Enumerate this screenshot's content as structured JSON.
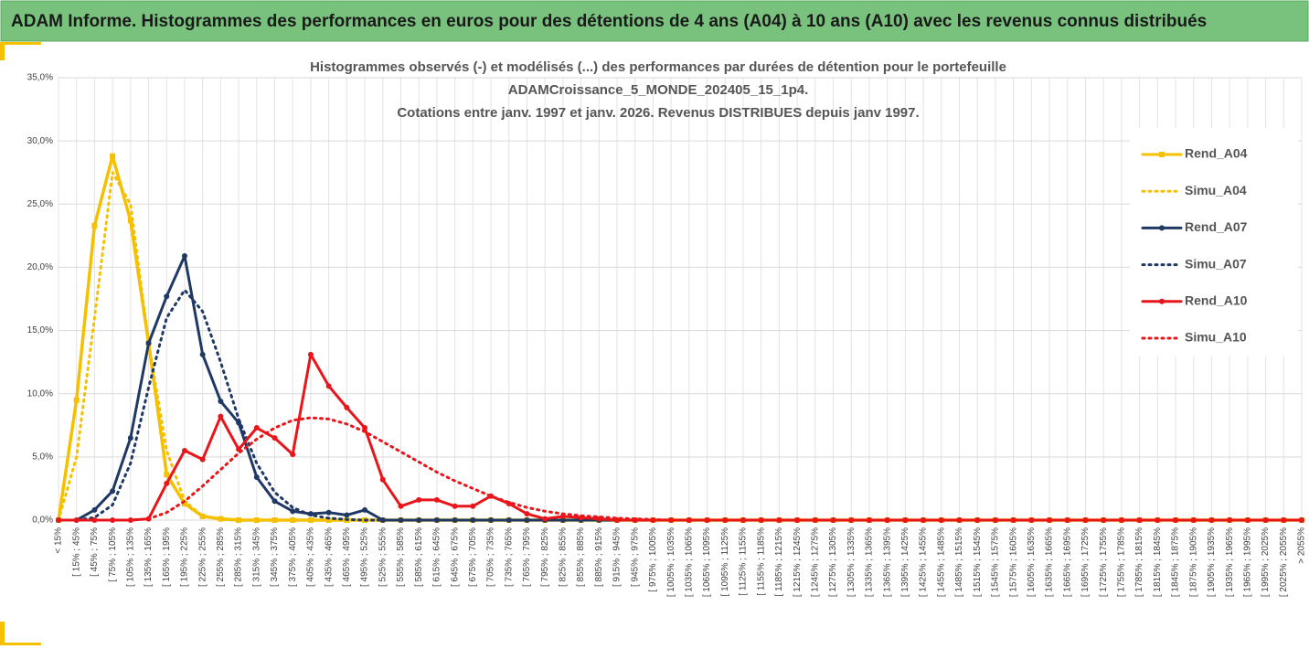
{
  "header": "ADAM Informe. Histogrammes des performances en euros pour des détentions de 4 ans (A04) à 10 ans (A10) avec les revenus connus distribués",
  "chart_data": {
    "type": "line",
    "title": [
      "Histogrammes observés (-) et modélisés (...) des performances par durées de détention pour le portefeuille",
      "ADAMCroissance_5_MONDE_202405_15_1p4.",
      "Cotations entre janv. 1997 et janv. 2026. Revenus DISTRIBUES depuis janv 1997."
    ],
    "categories": [
      "< 15%",
      "[ 15% ; 45%",
      "[ 45% ; 75%",
      "[ 75% ; 105%",
      "[ 105% ; 135%",
      "[ 135% ; 165%",
      "[ 165% ; 195%",
      "[ 195% ; 225%",
      "[ 225% ; 255%",
      "[ 255% ; 285%",
      "[ 285% ; 315%",
      "[ 315% ; 345%",
      "[ 345% ; 375%",
      "[ 375% ; 405%",
      "[ 405% ; 435%",
      "[ 435% ; 465%",
      "[ 465% ; 495%",
      "[ 495% ; 525%",
      "[ 525% ; 555%",
      "[ 555% ; 585%",
      "[ 585% ; 615%",
      "[ 615% ; 645%",
      "[ 645% ; 675%",
      "[ 675% ; 705%",
      "[ 705% ; 735%",
      "[ 735% ; 765%",
      "[ 765% ; 795%",
      "[ 795% ; 825%",
      "[ 825% ; 855%",
      "[ 855% ; 885%",
      "[ 885% ; 915%",
      "[ 915% ; 945%",
      "[ 945% ; 975%",
      "[ 975% ; 1005%",
      "[ 1005% ; 1035%",
      "[ 1035% ; 1065%",
      "[ 1065% ; 1095%",
      "[ 1095% ; 1125%",
      "[ 1125% ; 1155%",
      "[ 1155% ; 1185%",
      "[ 1185% ; 1215%",
      "[ 1215% ; 1245%",
      "[ 1245% ; 1275%",
      "[ 1275% ; 1305%",
      "[ 1305% ; 1335%",
      "[ 1335% ; 1365%",
      "[ 1365% ; 1395%",
      "[ 1395% ; 1425%",
      "[ 1425% ; 1455%",
      "[ 1455% ; 1485%",
      "[ 1485% ; 1515%",
      "[ 1515% ; 1545%",
      "[ 1545% ; 1575%",
      "[ 1575% ; 1605%",
      "[ 1605% ; 1635%",
      "[ 1635% ; 1665%",
      "[ 1665% ; 1695%",
      "[ 1695% ; 1725%",
      "[ 1725% ; 1755%",
      "[ 1755% ; 1785%",
      "[ 1785% ; 1815%",
      "[ 1815% ; 1845%",
      "[ 1845% ; 1875%",
      "[ 1875% ; 1905%",
      "[ 1905% ; 1935%",
      "[ 1935% ; 1965%",
      "[ 1965% ; 1995%",
      "[ 1995% ; 2025%",
      "[ 2025% ; 2055%",
      "> 2055%"
    ],
    "series": [
      {
        "name": "Rend_A04",
        "color": "#f5c000",
        "style": "solid",
        "marker": "square",
        "values": [
          0,
          9.5,
          23.3,
          28.8,
          23.7,
          14,
          3.6,
          1.3,
          0.3,
          0.1,
          0,
          0,
          0,
          0,
          0,
          0,
          0,
          0,
          0,
          0,
          0,
          0,
          0,
          0,
          0,
          0,
          0,
          0,
          0,
          0,
          0,
          0,
          0,
          0,
          0,
          0,
          0,
          0,
          0,
          0,
          0,
          0,
          0,
          0,
          0,
          0,
          0,
          0,
          0,
          0,
          0,
          0,
          0,
          0,
          0,
          0,
          0,
          0,
          0,
          0,
          0,
          0,
          0,
          0,
          0,
          0,
          0,
          0,
          0,
          0
        ]
      },
      {
        "name": "Simu_A04",
        "color": "#f5c000",
        "style": "dotted",
        "values": [
          0,
          5,
          16,
          27.5,
          25,
          14,
          5.5,
          1.5,
          0.3,
          0.05,
          0,
          0,
          0,
          0,
          0,
          0,
          0,
          0,
          0,
          0,
          0,
          0,
          0,
          0,
          0,
          0,
          0,
          0,
          0,
          0,
          0,
          0,
          0,
          0,
          0,
          0,
          0,
          0,
          0,
          0,
          0,
          0,
          0,
          0,
          0,
          0,
          0,
          0,
          0,
          0,
          0,
          0,
          0,
          0,
          0,
          0,
          0,
          0,
          0,
          0,
          0,
          0,
          0,
          0,
          0,
          0,
          0,
          0,
          0,
          0
        ]
      },
      {
        "name": "Rend_A07",
        "color": "#1f3864",
        "style": "solid",
        "marker": "circle",
        "values": [
          0,
          0,
          0.8,
          2.3,
          6.5,
          14,
          17.7,
          20.9,
          13.1,
          9.4,
          7.7,
          3.4,
          1.5,
          0.7,
          0.5,
          0.6,
          0.4,
          0.8,
          0,
          0,
          0,
          0,
          0,
          0,
          0,
          0,
          0,
          0,
          0,
          0,
          0,
          0,
          0,
          0,
          0,
          0,
          0,
          0,
          0,
          0,
          0,
          0,
          0,
          0,
          0,
          0,
          0,
          0,
          0,
          0,
          0,
          0,
          0,
          0,
          0,
          0,
          0,
          0,
          0,
          0,
          0,
          0,
          0,
          0,
          0,
          0,
          0,
          0,
          0,
          0
        ]
      },
      {
        "name": "Simu_A07",
        "color": "#1f3864",
        "style": "dotted",
        "values": [
          0,
          0,
          0.2,
          1.2,
          4.5,
          10.5,
          16,
          18.2,
          16.5,
          12.5,
          8,
          4.5,
          2.2,
          1,
          0.4,
          0.15,
          0.05,
          0,
          0,
          0,
          0,
          0,
          0,
          0,
          0,
          0,
          0,
          0,
          0,
          0,
          0,
          0,
          0,
          0,
          0,
          0,
          0,
          0,
          0,
          0,
          0,
          0,
          0,
          0,
          0,
          0,
          0,
          0,
          0,
          0,
          0,
          0,
          0,
          0,
          0,
          0,
          0,
          0,
          0,
          0,
          0,
          0,
          0,
          0,
          0,
          0,
          0,
          0,
          0,
          0
        ]
      },
      {
        "name": "Rend_A10",
        "color": "#e8161b",
        "style": "solid",
        "marker": "circle",
        "values": [
          0,
          0,
          0,
          0,
          0,
          0.1,
          2.9,
          5.5,
          4.8,
          8.2,
          5.6,
          7.3,
          6.5,
          5.2,
          13.1,
          10.6,
          8.9,
          7.3,
          3.2,
          1.1,
          1.6,
          1.6,
          1.1,
          1.1,
          1.9,
          1.3,
          0.5,
          0.1,
          0.3,
          0.2,
          0.1,
          0,
          0,
          0,
          0,
          0,
          0,
          0,
          0,
          0,
          0,
          0,
          0,
          0,
          0,
          0,
          0,
          0,
          0,
          0,
          0,
          0,
          0,
          0,
          0,
          0,
          0,
          0,
          0,
          0,
          0,
          0,
          0,
          0,
          0,
          0,
          0,
          0,
          0,
          0
        ]
      },
      {
        "name": "Simu_A10",
        "color": "#e8161b",
        "style": "dotted",
        "values": [
          0,
          0,
          0,
          0,
          0,
          0.1,
          0.6,
          1.5,
          2.7,
          4,
          5.3,
          6.4,
          7.3,
          7.9,
          8.1,
          8,
          7.6,
          7,
          6.2,
          5.4,
          4.6,
          3.8,
          3.1,
          2.5,
          1.9,
          1.4,
          1,
          0.7,
          0.5,
          0.35,
          0.25,
          0.15,
          0.1,
          0.05,
          0,
          0,
          0,
          0,
          0,
          0,
          0,
          0,
          0,
          0,
          0,
          0,
          0,
          0,
          0,
          0,
          0,
          0,
          0,
          0,
          0,
          0,
          0,
          0,
          0,
          0,
          0,
          0,
          0,
          0,
          0,
          0,
          0,
          0,
          0,
          0
        ]
      }
    ],
    "ylim": [
      0,
      35
    ],
    "yticks": [
      {
        "value": 0,
        "label": "0,0%"
      },
      {
        "value": 5,
        "label": "5,0%"
      },
      {
        "value": 10,
        "label": "10,0%"
      },
      {
        "value": 15,
        "label": "15,0%"
      },
      {
        "value": 20,
        "label": "20,0%"
      },
      {
        "value": 25,
        "label": "25,0%"
      },
      {
        "value": 30,
        "label": "30,0%"
      },
      {
        "value": 35,
        "label": "35,0%"
      }
    ],
    "grid": true,
    "legend": "right"
  }
}
